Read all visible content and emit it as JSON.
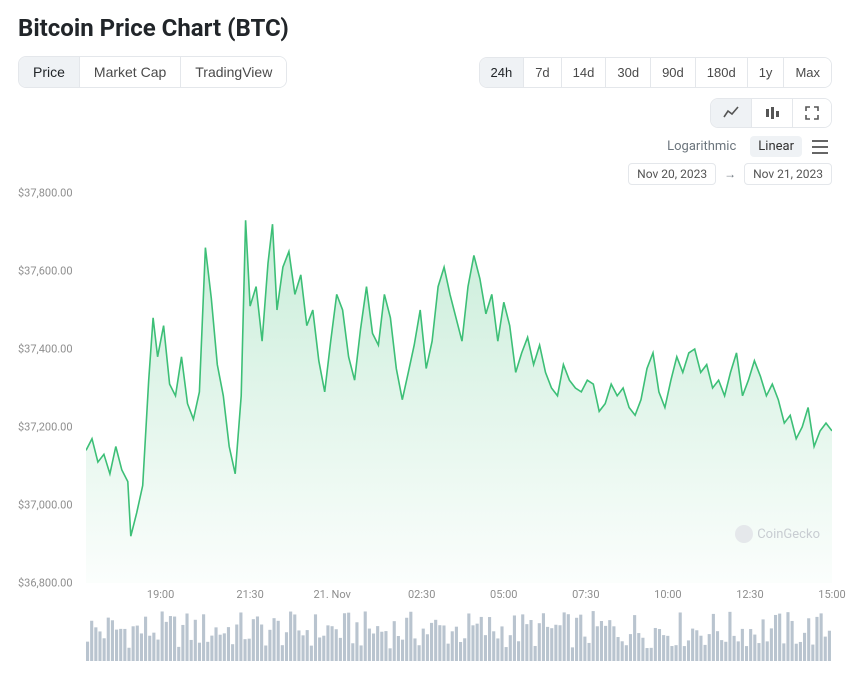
{
  "title": "Bitcoin Price Chart (BTC)",
  "tabs": [
    {
      "label": "Price",
      "active": true
    },
    {
      "label": "Market Cap",
      "active": false
    },
    {
      "label": "TradingView",
      "active": false
    }
  ],
  "ranges": [
    {
      "label": "24h",
      "active": true
    },
    {
      "label": "7d",
      "active": false
    },
    {
      "label": "14d",
      "active": false
    },
    {
      "label": "30d",
      "active": false
    },
    {
      "label": "90d",
      "active": false
    },
    {
      "label": "180d",
      "active": false
    },
    {
      "label": "1y",
      "active": false
    },
    {
      "label": "Max",
      "active": false
    }
  ],
  "chart_type_icons": [
    {
      "name": "line-chart-icon",
      "active": true
    },
    {
      "name": "candlestick-icon",
      "active": false
    },
    {
      "name": "fullscreen-icon",
      "active": false
    }
  ],
  "scale": {
    "log_label": "Logarithmic",
    "linear_label": "Linear",
    "active": "linear"
  },
  "date_range": {
    "from": "Nov 20, 2023",
    "arrow": "→",
    "to": "Nov 21, 2023"
  },
  "watermark": "CoinGecko",
  "chart": {
    "type": "area",
    "line_color": "#3dbf77",
    "fill_top_color": "rgba(61,191,119,0.28)",
    "fill_bottom_color": "rgba(61,191,119,0.02)",
    "background_color": "#ffffff",
    "y_axis": {
      "min": 36800,
      "max": 37800,
      "ticks": [
        36800,
        37000,
        37200,
        37400,
        37600,
        37800
      ],
      "tick_labels": [
        "$36,800.00",
        "$37,000.00",
        "$37,200.00",
        "$37,400.00",
        "$37,600.00",
        "$37,800.00"
      ],
      "label_color": "#8e8e8e",
      "label_fontsize": 11
    },
    "x_axis": {
      "ticks": [
        0.1,
        0.22,
        0.33,
        0.45,
        0.56,
        0.67,
        0.78,
        0.89,
        1.0
      ],
      "tick_labels": [
        "19:00",
        "21:30",
        "21. Nov",
        "02:30",
        "05:00",
        "07:30",
        "10:00",
        "12:30",
        "15:00"
      ],
      "label_color": "#8e8e8e",
      "label_fontsize": 11
    },
    "series": [
      [
        0.0,
        37140
      ],
      [
        0.008,
        37170
      ],
      [
        0.016,
        37110
      ],
      [
        0.024,
        37130
      ],
      [
        0.032,
        37080
      ],
      [
        0.04,
        37150
      ],
      [
        0.048,
        37090
      ],
      [
        0.056,
        37060
      ],
      [
        0.06,
        36920
      ],
      [
        0.068,
        36980
      ],
      [
        0.076,
        37050
      ],
      [
        0.084,
        37320
      ],
      [
        0.09,
        37480
      ],
      [
        0.096,
        37380
      ],
      [
        0.104,
        37460
      ],
      [
        0.112,
        37310
      ],
      [
        0.12,
        37280
      ],
      [
        0.128,
        37380
      ],
      [
        0.136,
        37260
      ],
      [
        0.144,
        37220
      ],
      [
        0.152,
        37290
      ],
      [
        0.16,
        37660
      ],
      [
        0.168,
        37530
      ],
      [
        0.176,
        37360
      ],
      [
        0.184,
        37280
      ],
      [
        0.192,
        37150
      ],
      [
        0.2,
        37080
      ],
      [
        0.208,
        37280
      ],
      [
        0.214,
        37730
      ],
      [
        0.22,
        37510
      ],
      [
        0.228,
        37560
      ],
      [
        0.236,
        37420
      ],
      [
        0.244,
        37620
      ],
      [
        0.25,
        37720
      ],
      [
        0.256,
        37500
      ],
      [
        0.264,
        37610
      ],
      [
        0.272,
        37650
      ],
      [
        0.28,
        37540
      ],
      [
        0.288,
        37590
      ],
      [
        0.296,
        37460
      ],
      [
        0.304,
        37500
      ],
      [
        0.312,
        37370
      ],
      [
        0.32,
        37290
      ],
      [
        0.328,
        37420
      ],
      [
        0.336,
        37540
      ],
      [
        0.344,
        37500
      ],
      [
        0.352,
        37380
      ],
      [
        0.36,
        37320
      ],
      [
        0.368,
        37450
      ],
      [
        0.376,
        37560
      ],
      [
        0.384,
        37440
      ],
      [
        0.392,
        37410
      ],
      [
        0.4,
        37540
      ],
      [
        0.408,
        37480
      ],
      [
        0.416,
        37350
      ],
      [
        0.424,
        37270
      ],
      [
        0.432,
        37340
      ],
      [
        0.44,
        37410
      ],
      [
        0.448,
        37500
      ],
      [
        0.456,
        37350
      ],
      [
        0.464,
        37420
      ],
      [
        0.472,
        37560
      ],
      [
        0.48,
        37610
      ],
      [
        0.488,
        37540
      ],
      [
        0.496,
        37480
      ],
      [
        0.504,
        37420
      ],
      [
        0.512,
        37560
      ],
      [
        0.52,
        37640
      ],
      [
        0.528,
        37580
      ],
      [
        0.536,
        37490
      ],
      [
        0.544,
        37540
      ],
      [
        0.552,
        37420
      ],
      [
        0.56,
        37520
      ],
      [
        0.568,
        37460
      ],
      [
        0.576,
        37340
      ],
      [
        0.584,
        37390
      ],
      [
        0.592,
        37430
      ],
      [
        0.6,
        37360
      ],
      [
        0.608,
        37410
      ],
      [
        0.616,
        37340
      ],
      [
        0.624,
        37300
      ],
      [
        0.632,
        37280
      ],
      [
        0.64,
        37360
      ],
      [
        0.648,
        37320
      ],
      [
        0.656,
        37300
      ],
      [
        0.664,
        37290
      ],
      [
        0.672,
        37320
      ],
      [
        0.68,
        37310
      ],
      [
        0.688,
        37240
      ],
      [
        0.696,
        37260
      ],
      [
        0.704,
        37310
      ],
      [
        0.712,
        37280
      ],
      [
        0.72,
        37300
      ],
      [
        0.728,
        37250
      ],
      [
        0.736,
        37230
      ],
      [
        0.744,
        37270
      ],
      [
        0.752,
        37350
      ],
      [
        0.76,
        37390
      ],
      [
        0.768,
        37290
      ],
      [
        0.776,
        37250
      ],
      [
        0.784,
        37320
      ],
      [
        0.792,
        37380
      ],
      [
        0.8,
        37340
      ],
      [
        0.808,
        37390
      ],
      [
        0.816,
        37400
      ],
      [
        0.824,
        37340
      ],
      [
        0.832,
        37360
      ],
      [
        0.84,
        37300
      ],
      [
        0.848,
        37320
      ],
      [
        0.856,
        37280
      ],
      [
        0.864,
        37340
      ],
      [
        0.872,
        37390
      ],
      [
        0.88,
        37280
      ],
      [
        0.888,
        37320
      ],
      [
        0.896,
        37370
      ],
      [
        0.904,
        37330
      ],
      [
        0.912,
        37280
      ],
      [
        0.92,
        37310
      ],
      [
        0.928,
        37270
      ],
      [
        0.936,
        37210
      ],
      [
        0.944,
        37230
      ],
      [
        0.952,
        37170
      ],
      [
        0.96,
        37200
      ],
      [
        0.968,
        37250
      ],
      [
        0.976,
        37150
      ],
      [
        0.984,
        37190
      ],
      [
        0.992,
        37210
      ],
      [
        1.0,
        37190
      ]
    ]
  },
  "volume": {
    "bar_color": "#b9c4cf",
    "count": 180,
    "min_h": 0.25,
    "max_h": 1.0
  }
}
